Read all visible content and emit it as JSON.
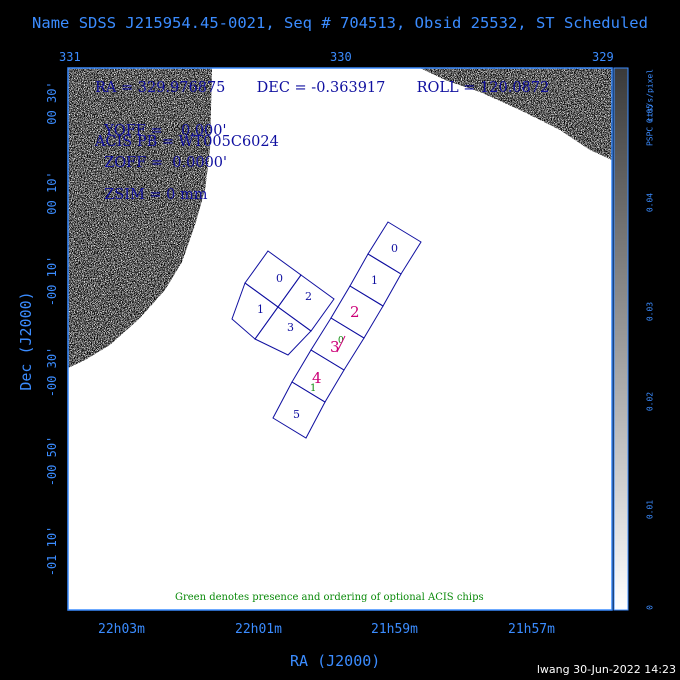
{
  "title": "Name SDSS J215954.45-0021, Seq # 704513, Obsid 25532, ST Scheduled",
  "top_ticks": [
    "331",
    "330",
    "329"
  ],
  "info": {
    "line1": [
      "RA = 329.976875",
      "DEC = -0.363917",
      "ROLL = 120.0872"
    ],
    "line2": [
      "YOFF =    0.000'",
      "ZOFF =  0.0000'",
      "ZSIM = 0 mm"
    ],
    "line3": "ACIS PB = WT005C6024"
  },
  "y_ticks": [
    "00 30'",
    "00 10'",
    "-00 10'",
    "-00 30'",
    "-00 50'",
    "-01 10'"
  ],
  "y_label": "Dec (J2000)",
  "x_ticks": [
    "22h03m",
    "22h01m",
    "21h59m",
    "21h57m"
  ],
  "x_label": "RA (J2000)",
  "colorbar": {
    "label": "PSPC cts/s/pixel",
    "ticks": [
      "0.05",
      "0.04",
      "0.03",
      "0.02",
      "0.01",
      "0"
    ]
  },
  "chips": {
    "ACIS-I": [
      "0",
      "1",
      "2",
      "3"
    ],
    "ACIS-S": [
      "0",
      "1",
      "2",
      "3",
      "4",
      "5"
    ],
    "ACIS-S_highlighted": [
      "2",
      "3",
      "4"
    ],
    "optional_overlay": [
      "1",
      "0"
    ]
  },
  "note": "Green denotes presence and ordering of optional ACIS chips",
  "footer": "lwang 30-Jun-2022 14:23",
  "colors": {
    "axis_blue": "#3b8cff",
    "chip_blue": "#1010a0",
    "chip_magenta": "#cc0077",
    "note_green": "#0a8a0a",
    "background": "#000000",
    "plot_bg": "#ffffff"
  }
}
